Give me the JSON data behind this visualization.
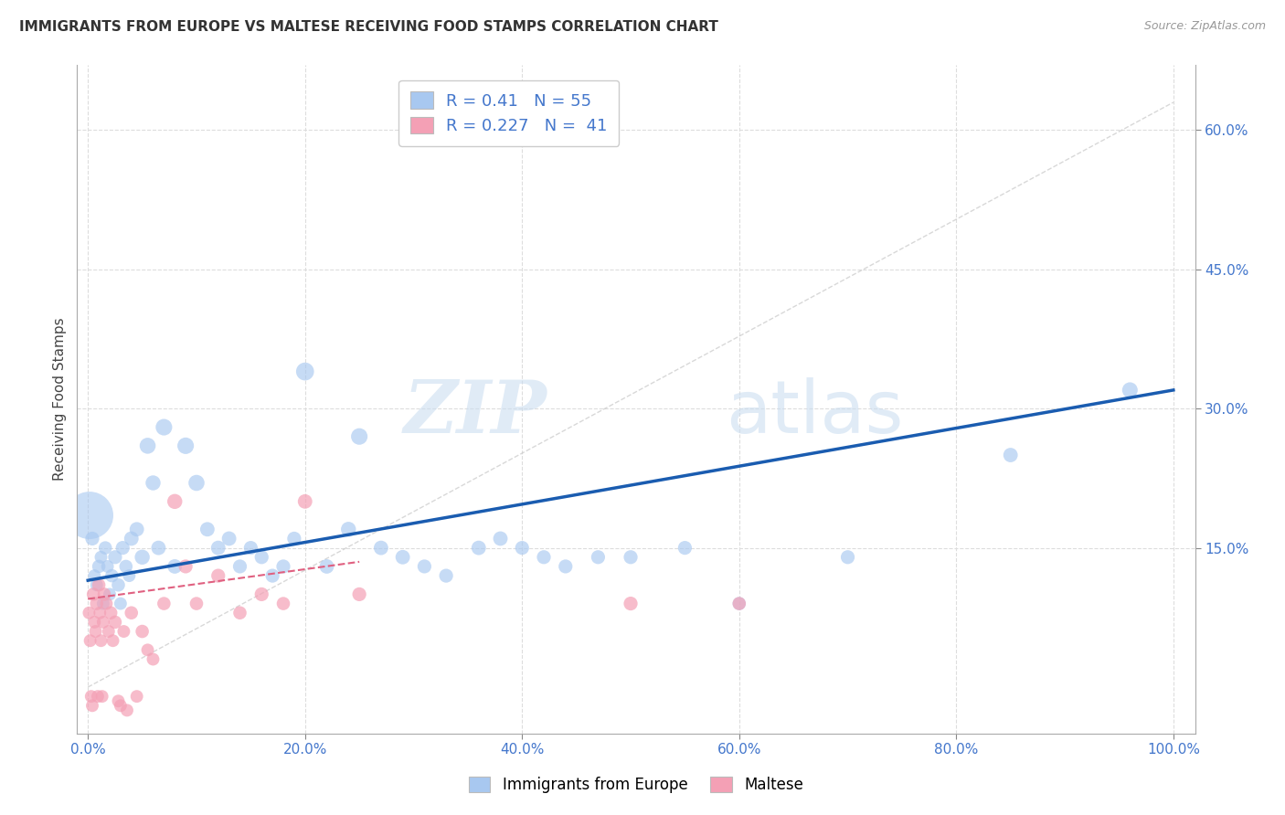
{
  "title": "IMMIGRANTS FROM EUROPE VS MALTESE RECEIVING FOOD STAMPS CORRELATION CHART",
  "source": "Source: ZipAtlas.com",
  "ylabel": "Receiving Food Stamps",
  "x_ticks": [
    0.0,
    20.0,
    40.0,
    60.0,
    80.0,
    100.0
  ],
  "x_tick_labels": [
    "0.0%",
    "20.0%",
    "40.0%",
    "60.0%",
    "80.0%",
    "100.0%"
  ],
  "y_ticks": [
    15.0,
    30.0,
    45.0,
    60.0
  ],
  "y_tick_labels": [
    "15.0%",
    "30.0%",
    "45.0%",
    "60.0%"
  ],
  "xlim": [
    -1.0,
    102.0
  ],
  "ylim": [
    -5.0,
    67.0
  ],
  "blue_color": "#A8C8F0",
  "pink_color": "#F4A0B5",
  "blue_line_color": "#1A5CB0",
  "pink_line_color": "#E06080",
  "diag_line_color": "#CCCCCC",
  "R_blue": 0.41,
  "N_blue": 55,
  "R_pink": 0.227,
  "N_pink": 41,
  "legend_label_blue": "Immigrants from Europe",
  "legend_label_pink": "Maltese",
  "blue_scatter_x": [
    0.4,
    0.6,
    0.8,
    1.0,
    1.2,
    1.4,
    1.6,
    1.8,
    2.0,
    2.2,
    2.5,
    2.8,
    3.0,
    3.2,
    3.5,
    3.8,
    4.0,
    4.5,
    5.0,
    5.5,
    6.0,
    6.5,
    7.0,
    8.0,
    9.0,
    10.0,
    11.0,
    12.0,
    13.0,
    14.0,
    15.0,
    16.0,
    17.0,
    18.0,
    19.0,
    20.0,
    22.0,
    24.0,
    25.0,
    27.0,
    29.0,
    31.0,
    33.0,
    36.0,
    38.0,
    40.0,
    42.0,
    44.0,
    47.0,
    50.0,
    55.0,
    60.0,
    70.0,
    85.0,
    96.0
  ],
  "blue_scatter_y": [
    16.0,
    12.0,
    11.0,
    13.0,
    14.0,
    9.0,
    15.0,
    13.0,
    10.0,
    12.0,
    14.0,
    11.0,
    9.0,
    15.0,
    13.0,
    12.0,
    16.0,
    17.0,
    14.0,
    26.0,
    22.0,
    15.0,
    28.0,
    13.0,
    26.0,
    22.0,
    17.0,
    15.0,
    16.0,
    13.0,
    15.0,
    14.0,
    12.0,
    13.0,
    16.0,
    34.0,
    13.0,
    17.0,
    27.0,
    15.0,
    14.0,
    13.0,
    12.0,
    15.0,
    16.0,
    15.0,
    14.0,
    13.0,
    14.0,
    14.0,
    15.0,
    9.0,
    14.0,
    25.0,
    32.0
  ],
  "blue_scatter_sizes": [
    120,
    100,
    100,
    110,
    100,
    100,
    110,
    100,
    100,
    110,
    120,
    110,
    100,
    120,
    110,
    100,
    130,
    130,
    140,
    160,
    140,
    130,
    170,
    130,
    170,
    160,
    130,
    130,
    130,
    120,
    120,
    120,
    120,
    120,
    120,
    200,
    130,
    140,
    170,
    130,
    130,
    120,
    120,
    130,
    130,
    120,
    120,
    120,
    120,
    120,
    120,
    110,
    120,
    130,
    150
  ],
  "pink_scatter_x": [
    0.1,
    0.2,
    0.3,
    0.4,
    0.5,
    0.6,
    0.7,
    0.8,
    0.9,
    1.0,
    1.1,
    1.2,
    1.3,
    1.4,
    1.5,
    1.7,
    1.9,
    2.1,
    2.3,
    2.5,
    2.8,
    3.0,
    3.3,
    3.6,
    4.0,
    4.5,
    5.0,
    5.5,
    6.0,
    7.0,
    8.0,
    9.0,
    10.0,
    12.0,
    14.0,
    16.0,
    18.0,
    20.0,
    25.0,
    50.0,
    60.0
  ],
  "pink_scatter_y": [
    8.0,
    5.0,
    -1.0,
    -2.0,
    10.0,
    7.0,
    6.0,
    9.0,
    -1.0,
    11.0,
    8.0,
    5.0,
    -1.0,
    7.0,
    10.0,
    9.0,
    6.0,
    8.0,
    5.0,
    7.0,
    -1.5,
    -2.0,
    6.0,
    -2.5,
    8.0,
    -1.0,
    6.0,
    4.0,
    3.0,
    9.0,
    20.0,
    13.0,
    9.0,
    12.0,
    8.0,
    10.0,
    9.0,
    20.0,
    10.0,
    9.0,
    9.0
  ],
  "pink_scatter_sizes": [
    100,
    100,
    100,
    100,
    110,
    100,
    100,
    110,
    100,
    110,
    100,
    100,
    100,
    100,
    110,
    100,
    100,
    110,
    100,
    110,
    100,
    100,
    100,
    100,
    110,
    100,
    110,
    100,
    100,
    110,
    140,
    120,
    110,
    120,
    110,
    120,
    110,
    130,
    120,
    120,
    110
  ],
  "big_blue_x": 0.15,
  "big_blue_y": 18.5,
  "big_blue_size": 1400,
  "blue_trend_x": [
    0.0,
    100.0
  ],
  "blue_trend_y": [
    11.5,
    32.0
  ],
  "pink_trend_x": [
    0.0,
    25.0
  ],
  "pink_trend_y": [
    9.5,
    13.5
  ]
}
